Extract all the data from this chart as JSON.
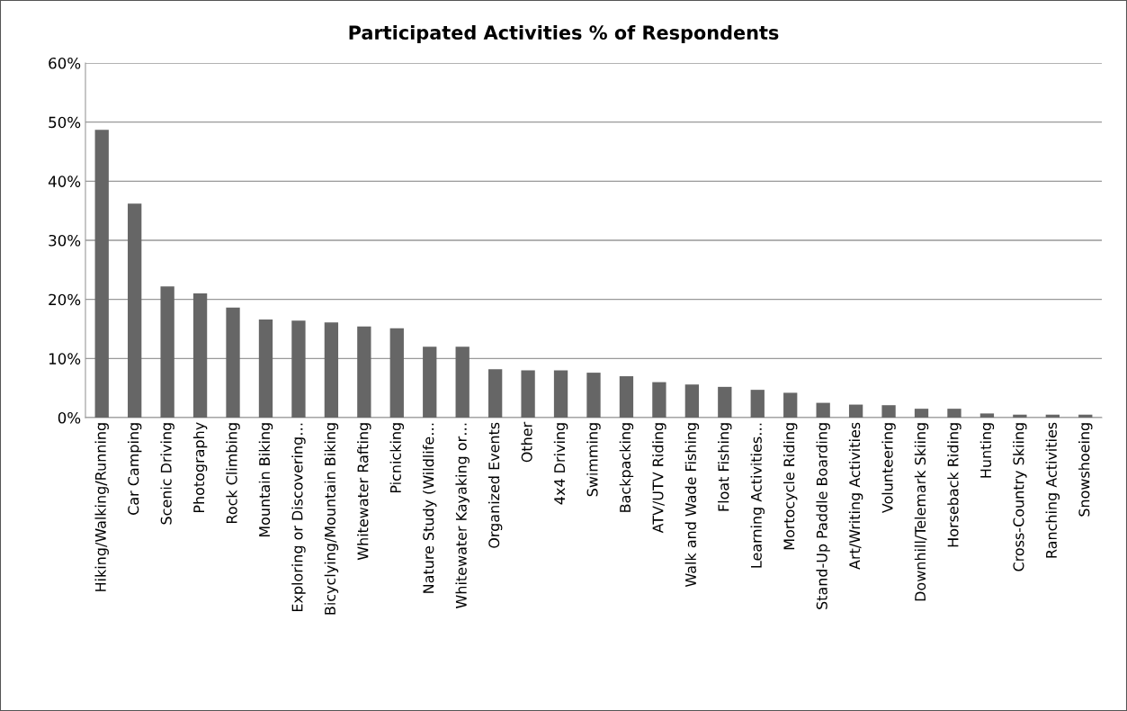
{
  "chart_data": {
    "type": "bar",
    "title": "Participated Activities % of Respondents",
    "categories": [
      "Hiking/Walking/Running",
      "Car Camping",
      "Scenic Driving",
      "Photography",
      "Rock Climbing",
      "Mountain Biking",
      "Exploring or Discovering…",
      "Bicyclying/Mountain Biking",
      "Whitewater Rafting",
      "Picnicking",
      "Nature Study (Wildlife…",
      "Whitewater Kayaking or…",
      "Organized Events",
      "Other",
      "4x4 Driving",
      "Swimming",
      "Backpacking",
      "ATV/UTV Riding",
      "Walk and Wade Fishing",
      "Float Fishing",
      "Learning Activities…",
      "Mortocycle Riding",
      "Stand-Up Paddle Boarding",
      "Art/Writing Activities",
      "Volunteering",
      "Downhill/Telemark Skiing",
      "Horseback Riding",
      "Hunting",
      "Cross-Country Skiing",
      "Ranching Activities",
      "Snowshoeing"
    ],
    "values": [
      48.7,
      36.2,
      22.2,
      21.0,
      18.6,
      16.6,
      16.4,
      16.1,
      15.4,
      15.1,
      12.0,
      12.0,
      8.2,
      8.0,
      8.0,
      7.6,
      7.0,
      6.0,
      5.6,
      5.2,
      4.7,
      4.2,
      2.5,
      2.2,
      2.1,
      1.5,
      1.5,
      0.7,
      0.5,
      0.5,
      0.5
    ],
    "color": "#666666",
    "ylim": [
      0,
      60
    ],
    "yticks": [
      {
        "value": 0,
        "label": "0%"
      },
      {
        "value": 10,
        "label": "10%"
      },
      {
        "value": 20,
        "label": "20%"
      },
      {
        "value": 30,
        "label": "30%"
      },
      {
        "value": 40,
        "label": "40%"
      },
      {
        "value": 50,
        "label": "50%"
      },
      {
        "value": 60,
        "label": "60%"
      }
    ],
    "grid": "y"
  }
}
